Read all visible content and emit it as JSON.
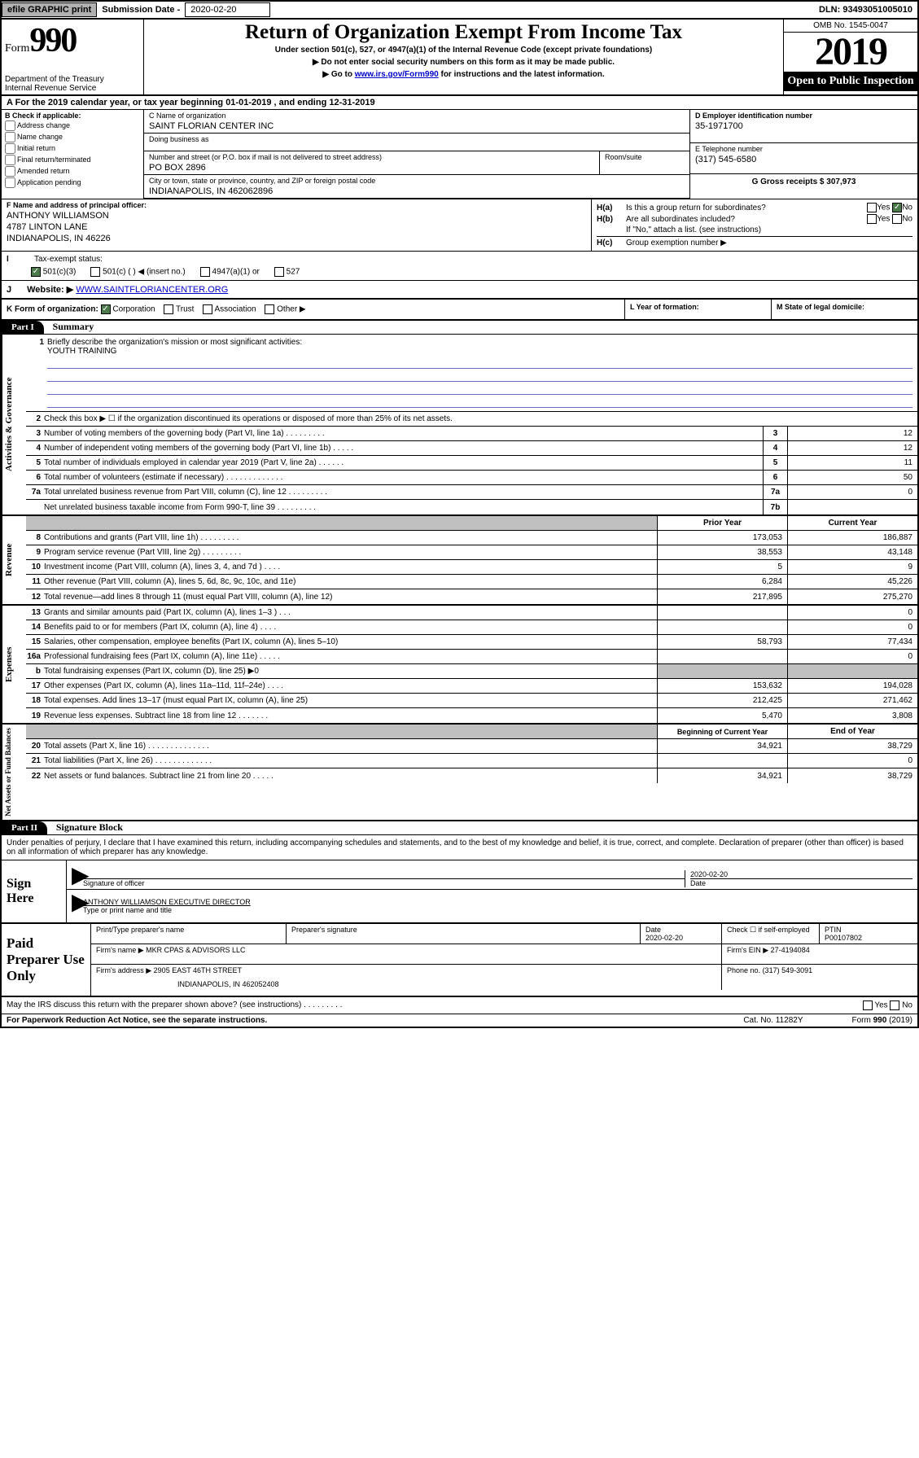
{
  "top": {
    "efile": "efile GRAPHIC print",
    "sub_label": "Submission Date - ",
    "sub_date": "2020-02-20",
    "dln": "DLN: 93493051005010"
  },
  "header": {
    "form_word": "Form",
    "form_num": "990",
    "dept": "Department of the Treasury\nInternal Revenue Service",
    "title": "Return of Organization Exempt From Income Tax",
    "subtitle": "Under section 501(c), 527, or 4947(a)(1) of the Internal Revenue Code (except private foundations)",
    "instr1": "▶ Do not enter social security numbers on this form as it may be made public.",
    "instr2_pre": "▶ Go to ",
    "instr2_link": "www.irs.gov/Form990",
    "instr2_post": " for instructions and the latest information.",
    "omb": "OMB No. 1545-0047",
    "year": "2019",
    "open": "Open to Public Inspection"
  },
  "period": "A For the 2019 calendar year, or tax year beginning 01-01-2019    , and ending 12-31-2019",
  "box_b": {
    "label": "B Check if applicable:",
    "items": [
      "Address change",
      "Name change",
      "Initial return",
      "Final return/terminated",
      "Amended return",
      "Application pending"
    ]
  },
  "box_c": {
    "name_label": "C Name of organization",
    "name": "SAINT FLORIAN CENTER INC",
    "dba_label": "Doing business as",
    "addr_label": "Number and street (or P.O. box if mail is not delivered to street address)",
    "addr": "PO BOX 2896",
    "room_label": "Room/suite",
    "city_label": "City or town, state or province, country, and ZIP or foreign postal code",
    "city": "INDIANAPOLIS, IN  462062896"
  },
  "box_d": {
    "ein_label": "D Employer identification number",
    "ein": "35-1971700",
    "phone_label": "E Telephone number",
    "phone": "(317) 545-6580",
    "gross_label": "G Gross receipts $ ",
    "gross": "307,973"
  },
  "box_f": {
    "label": "F  Name and address of principal officer:",
    "name": "ANTHONY WILLIAMSON",
    "addr1": "4787 LINTON LANE",
    "addr2": "INDIANAPOLIS, IN  46226"
  },
  "box_h": {
    "ha_label": "H(a)",
    "ha_text": "Is this a group return for subordinates?",
    "hb_label": "H(b)",
    "hb_text": "Are all subordinates included?",
    "hb_note": "If \"No,\" attach a list. (see instructions)",
    "hc_label": "H(c)",
    "hc_text": "Group exemption number ▶",
    "yes": "Yes",
    "no": "No"
  },
  "box_i": {
    "label": "Tax-exempt status:",
    "opt1": "501(c)(3)",
    "opt2": "501(c) (   ) ◀ (insert no.)",
    "opt3": "4947(a)(1) or",
    "opt4": "527"
  },
  "box_j": {
    "label": "Website: ▶",
    "url": "WWW.SAINTFLORIANCENTER.ORG"
  },
  "box_k": {
    "label": "K Form of organization:",
    "opt1": "Corporation",
    "opt2": "Trust",
    "opt3": "Association",
    "opt4": "Other ▶"
  },
  "box_l": "L Year of formation:",
  "box_m": "M State of legal domicile:",
  "part1": {
    "num": "Part I",
    "title": "Summary"
  },
  "part2": {
    "num": "Part II",
    "title": "Signature Block"
  },
  "sections": {
    "gov": "Activities & Governance",
    "rev": "Revenue",
    "exp": "Expenses",
    "net": "Net Assets or Fund Balances"
  },
  "mission": {
    "num": "1",
    "label": "Briefly describe the organization's mission or most significant activities:",
    "text": "YOUTH TRAINING"
  },
  "lines_gov": [
    {
      "n": "2",
      "t": "Check this box ▶ ☐  if the organization discontinued its operations or disposed of more than 25% of its net assets."
    },
    {
      "n": "3",
      "t": "Number of voting members of the governing body (Part VI, line 1a)   .    .    .    .    .    .    .    .    .",
      "r": "3",
      "v": "12"
    },
    {
      "n": "4",
      "t": "Number of independent voting members of the governing body (Part VI, line 1b)   .    .    .    .    .",
      "r": "4",
      "v": "12"
    },
    {
      "n": "5",
      "t": "Total number of individuals employed in calendar year 2019 (Part V, line 2a)   .    .    .    .    .    .",
      "r": "5",
      "v": "11"
    },
    {
      "n": "6",
      "t": "Total number of volunteers (estimate if necessary)   .    .    .    .    .    .    .    .    .    .    .    .    .",
      "r": "6",
      "v": "50"
    },
    {
      "n": "7a",
      "t": "Total unrelated business revenue from Part VIII, column (C), line 12   .    .    .    .    .    .    .    .    .",
      "r": "7a",
      "v": "0"
    },
    {
      "n": "",
      "t": "Net unrelated business taxable income from Form 990-T, line 39   .    .    .    .    .    .    .    .    .",
      "r": "7b",
      "v": ""
    }
  ],
  "hdr_prior": "Prior Year",
  "hdr_current": "Current Year",
  "lines_rev": [
    {
      "n": "8",
      "t": "Contributions and grants (Part VIII, line 1h)   .    .    .    .    .    .    .    .    .",
      "p": "173,053",
      "c": "186,887"
    },
    {
      "n": "9",
      "t": "Program service revenue (Part VIII, line 2g)   .    .    .    .    .    .    .    .    .",
      "p": "38,553",
      "c": "43,148"
    },
    {
      "n": "10",
      "t": "Investment income (Part VIII, column (A), lines 3, 4, and 7d )   .    .    .    .",
      "p": "5",
      "c": "9"
    },
    {
      "n": "11",
      "t": "Other revenue (Part VIII, column (A), lines 5, 6d, 8c, 9c, 10c, and 11e)",
      "p": "6,284",
      "c": "45,226"
    },
    {
      "n": "12",
      "t": "Total revenue—add lines 8 through 11 (must equal Part VIII, column (A), line 12)",
      "p": "217,895",
      "c": "275,270"
    }
  ],
  "lines_exp": [
    {
      "n": "13",
      "t": "Grants and similar amounts paid (Part IX, column (A), lines 1–3 )   .    .    .",
      "p": "",
      "c": "0"
    },
    {
      "n": "14",
      "t": "Benefits paid to or for members (Part IX, column (A), line 4)   .    .    .    .",
      "p": "",
      "c": "0"
    },
    {
      "n": "15",
      "t": "Salaries, other compensation, employee benefits (Part IX, column (A), lines 5–10)",
      "p": "58,793",
      "c": "77,434"
    },
    {
      "n": "16a",
      "t": "Professional fundraising fees (Part IX, column (A), line 11e)   .    .    .    .    .",
      "p": "",
      "c": "0"
    },
    {
      "n": "b",
      "t": "Total fundraising expenses (Part IX, column (D), line 25) ▶0",
      "p": "shaded",
      "c": "shaded"
    },
    {
      "n": "17",
      "t": "Other expenses (Part IX, column (A), lines 11a–11d, 11f–24e)   .    .    .    .",
      "p": "153,632",
      "c": "194,028"
    },
    {
      "n": "18",
      "t": "Total expenses. Add lines 13–17 (must equal Part IX, column (A), line 25)",
      "p": "212,425",
      "c": "271,462"
    },
    {
      "n": "19",
      "t": "Revenue less expenses. Subtract line 18 from line 12   .    .    .    .    .    .    .",
      "p": "5,470",
      "c": "3,808"
    }
  ],
  "hdr_begin": "Beginning of Current Year",
  "hdr_end": "End of Year",
  "lines_net": [
    {
      "n": "20",
      "t": "Total assets (Part X, line 16)   .    .    .    .    .    .    .    .    .    .    .    .    .    .",
      "p": "34,921",
      "c": "38,729"
    },
    {
      "n": "21",
      "t": "Total liabilities (Part X, line 26)   .    .    .    .    .    .    .    .    .    .    .    .    .",
      "p": "",
      "c": "0"
    },
    {
      "n": "22",
      "t": "Net assets or fund balances. Subtract line 21 from line 20   .    .    .    .    .",
      "p": "34,921",
      "c": "38,729"
    }
  ],
  "sig_declaration": "Under penalties of perjury, I declare that I have examined this return, including accompanying schedules and statements, and to the best of my knowledge and belief, it is true, correct, and complete. Declaration of preparer (other than officer) is based on all information of which preparer has any knowledge.",
  "sign_here": "Sign Here",
  "sig_officer_label": "Signature of officer",
  "sig_date_label": "Date",
  "sig_date": "2020-02-20",
  "sig_name": "ANTHONY WILLIAMSON  EXECUTIVE DIRECTOR",
  "sig_name_label": "Type or print name and title",
  "paid_prep": "Paid Preparer Use Only",
  "prep": {
    "name_label": "Print/Type preparer's name",
    "sig_label": "Preparer's signature",
    "date_label": "Date",
    "date": "2020-02-20",
    "check_label": "Check ☐ if self-employed",
    "ptin_label": "PTIN",
    "ptin": "P00107802",
    "firm_name_label": "Firm's name    ▶",
    "firm_name": "MKR CPAS & ADVISORS LLC",
    "firm_ein_label": "Firm's EIN ▶",
    "firm_ein": "27-4194084",
    "firm_addr_label": "Firm's address ▶",
    "firm_addr1": "2905 EAST 46TH STREET",
    "firm_addr2": "INDIANAPOLIS, IN  462052408",
    "phone_label": "Phone no.",
    "phone": "(317) 549-3091"
  },
  "discuss": "May the IRS discuss this return with the preparer shown above? (see instructions)   .    .    .    .    .    .    .    .    .",
  "pra": "For Paperwork Reduction Act Notice, see the separate instructions.",
  "cat": "Cat. No. 11282Y",
  "form_foot": "Form 990 (2019)"
}
